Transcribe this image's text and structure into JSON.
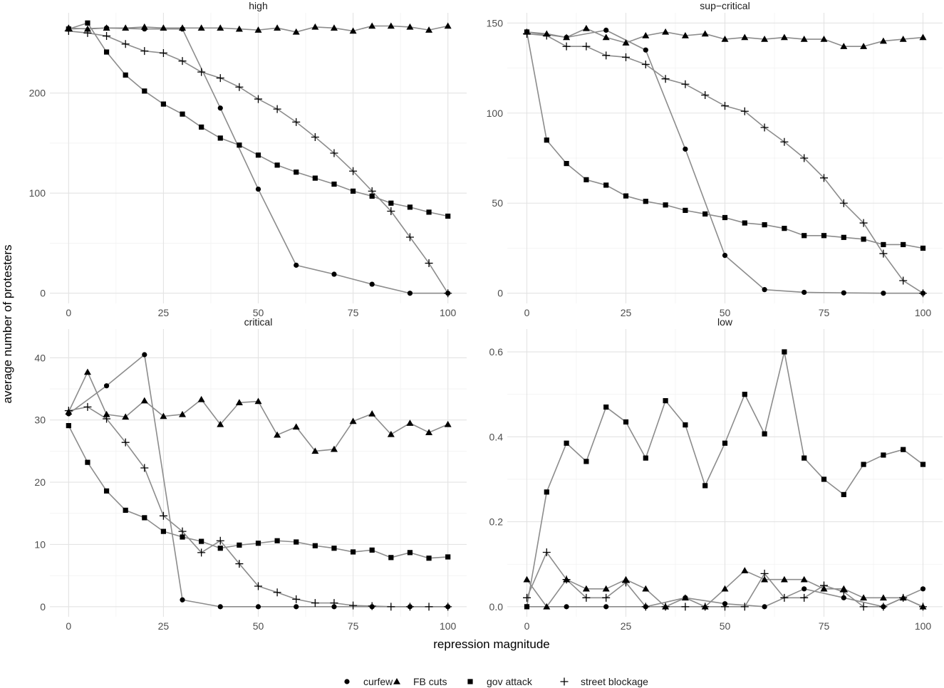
{
  "figure": {
    "xlabel": "repression magnitude",
    "ylabel": "average number of protesters",
    "colors": {
      "line": "#8c8c8c",
      "marker": "#000000",
      "grid_major": "#e3e3e3",
      "grid_minor": "#f2f2f2",
      "text": "#4d4d4d"
    },
    "legend": {
      "placement": "bottom",
      "items": [
        {
          "label": "curfew",
          "shape": "circle"
        },
        {
          "label": "FB cuts",
          "shape": "triangle"
        },
        {
          "label": "gov attack",
          "shape": "square"
        },
        {
          "label": "street blockage",
          "shape": "plus"
        }
      ]
    }
  },
  "chart_data": [
    {
      "type": "line",
      "title": "high",
      "xlim": [
        0,
        100
      ],
      "ylim": [
        0,
        270
      ],
      "x_ticks": [
        0,
        25,
        50,
        75,
        100
      ],
      "y_ticks": [
        0,
        100,
        200
      ],
      "series": [
        {
          "name": "curfew",
          "shape": "circle",
          "x": [
            0,
            10,
            20,
            30,
            40,
            50,
            60,
            70,
            80,
            90,
            100
          ],
          "y": [
            264,
            265,
            264,
            264,
            185,
            104,
            28,
            19,
            9,
            0,
            0
          ]
        },
        {
          "name": "FB cuts",
          "shape": "triangle",
          "x": [
            0,
            5,
            10,
            15,
            20,
            25,
            30,
            35,
            40,
            45,
            50,
            55,
            60,
            65,
            70,
            75,
            80,
            85,
            90,
            95,
            100
          ],
          "y": [
            265,
            264,
            265,
            265,
            266,
            265,
            265,
            265,
            265,
            264,
            263,
            265,
            261,
            266,
            265,
            262,
            267,
            267,
            266,
            263,
            267
          ]
        },
        {
          "name": "gov attack",
          "shape": "square",
          "x": [
            0,
            5,
            10,
            15,
            20,
            25,
            30,
            35,
            40,
            45,
            50,
            55,
            60,
            65,
            70,
            75,
            80,
            85,
            90,
            95,
            100
          ],
          "y": [
            264,
            270,
            241,
            218,
            202,
            189,
            179,
            166,
            155,
            148,
            138,
            128,
            121,
            115,
            109,
            102,
            97,
            90,
            86,
            81,
            77
          ]
        },
        {
          "name": "street blockage",
          "shape": "plus",
          "x": [
            0,
            5,
            10,
            15,
            20,
            25,
            30,
            35,
            40,
            45,
            50,
            55,
            60,
            65,
            70,
            75,
            80,
            85,
            90,
            95,
            100
          ],
          "y": [
            262,
            260,
            257,
            249,
            242,
            240,
            232,
            221,
            215,
            206,
            194,
            184,
            171,
            156,
            140,
            122,
            102,
            82,
            56,
            30,
            0
          ]
        }
      ]
    },
    {
      "type": "line",
      "title": "sup−critical",
      "xlim": [
        0,
        100
      ],
      "ylim": [
        0,
        150
      ],
      "x_ticks": [
        0,
        25,
        50,
        75,
        100
      ],
      "y_ticks": [
        0,
        50,
        100,
        150
      ],
      "series": [
        {
          "name": "curfew",
          "shape": "circle",
          "x": [
            0,
            10,
            20,
            30,
            40,
            50,
            60,
            70,
            80,
            90,
            100
          ],
          "y": [
            145,
            142,
            146,
            135,
            80,
            21,
            2,
            0.5,
            0.2,
            0,
            0
          ]
        },
        {
          "name": "FB cuts",
          "shape": "triangle",
          "x": [
            0,
            5,
            10,
            15,
            20,
            25,
            30,
            35,
            40,
            45,
            50,
            55,
            60,
            65,
            70,
            75,
            80,
            85,
            90,
            95,
            100
          ],
          "y": [
            145,
            144,
            142,
            147,
            142,
            139,
            143,
            145,
            143,
            144,
            141,
            142,
            141,
            142,
            141,
            141,
            137,
            137,
            140,
            141,
            142
          ]
        },
        {
          "name": "gov attack",
          "shape": "square",
          "x": [
            0,
            5,
            10,
            15,
            20,
            25,
            30,
            35,
            40,
            45,
            50,
            55,
            60,
            65,
            70,
            75,
            80,
            85,
            90,
            95,
            100
          ],
          "y": [
            145,
            85,
            72,
            63,
            60,
            54,
            51,
            49,
            46,
            44,
            42,
            39,
            38,
            36,
            32,
            32,
            31,
            30,
            27,
            27,
            25
          ]
        },
        {
          "name": "street blockage",
          "shape": "plus",
          "x": [
            0,
            5,
            10,
            15,
            20,
            25,
            30,
            35,
            40,
            45,
            50,
            55,
            60,
            65,
            70,
            75,
            80,
            85,
            90,
            95,
            100
          ],
          "y": [
            144,
            143,
            137,
            137,
            132,
            131,
            127,
            119,
            116,
            110,
            104,
            101,
            92,
            84,
            75,
            64,
            50,
            39,
            22,
            7,
            0
          ]
        }
      ]
    },
    {
      "type": "line",
      "title": "critical",
      "xlim": [
        0,
        100
      ],
      "ylim": [
        0,
        43
      ],
      "x_ticks": [
        0,
        25,
        50,
        75,
        100
      ],
      "y_ticks": [
        0,
        10,
        20,
        30,
        40
      ],
      "series": [
        {
          "name": "curfew",
          "shape": "circle",
          "x": [
            0,
            10,
            20,
            30,
            40,
            50,
            60,
            70,
            80,
            90,
            100
          ],
          "y": [
            31,
            35.5,
            40.5,
            1.1,
            0,
            0,
            0,
            0,
            0,
            0,
            0
          ]
        },
        {
          "name": "FB cuts",
          "shape": "triangle",
          "x": [
            0,
            5,
            10,
            15,
            20,
            25,
            30,
            35,
            40,
            45,
            50,
            55,
            60,
            65,
            70,
            75,
            80,
            85,
            90,
            95,
            100
          ],
          "y": [
            31.3,
            37.7,
            30.9,
            30.5,
            33.1,
            30.6,
            30.9,
            33.3,
            29.3,
            32.8,
            33.0,
            27.6,
            28.9,
            25.0,
            25.3,
            29.8,
            31.0,
            27.7,
            29.5,
            28.0,
            29.3
          ]
        },
        {
          "name": "gov attack",
          "shape": "square",
          "x": [
            0,
            5,
            10,
            15,
            20,
            25,
            30,
            35,
            40,
            45,
            50,
            55,
            60,
            65,
            70,
            75,
            80,
            85,
            90,
            95,
            100
          ],
          "y": [
            29.1,
            23.2,
            18.6,
            15.5,
            14.3,
            12.1,
            11.2,
            10.5,
            9.4,
            9.9,
            10.2,
            10.6,
            10.4,
            9.8,
            9.4,
            8.8,
            9.1,
            7.9,
            8.7,
            7.8,
            8.0
          ]
        },
        {
          "name": "street blockage",
          "shape": "plus",
          "x": [
            0,
            5,
            10,
            15,
            20,
            25,
            30,
            35,
            40,
            45,
            50,
            55,
            60,
            65,
            70,
            75,
            80,
            85,
            90,
            95,
            100
          ],
          "y": [
            31.5,
            32.1,
            30.2,
            26.4,
            22.3,
            14.6,
            12.1,
            8.7,
            10.6,
            6.9,
            3.3,
            2.3,
            1.2,
            0.6,
            0.6,
            0.2,
            0.1,
            0,
            0,
            0,
            0
          ]
        }
      ]
    },
    {
      "type": "line",
      "title": "low",
      "xlim": [
        0,
        100
      ],
      "ylim": [
        0,
        0.63
      ],
      "x_ticks": [
        0,
        25,
        50,
        75,
        100
      ],
      "y_ticks": [
        0.0,
        0.2,
        0.4,
        0.6
      ],
      "y_tick_labels": [
        "0.0",
        "0.2",
        "0.4",
        "0.6"
      ],
      "series": [
        {
          "name": "curfew",
          "shape": "circle",
          "x": [
            0,
            10,
            20,
            30,
            40,
            50,
            60,
            70,
            80,
            90,
            100
          ],
          "y": [
            0,
            0,
            0,
            0,
            0.021,
            0.007,
            0,
            0.042,
            0.021,
            0,
            0.042
          ]
        },
        {
          "name": "FB cuts",
          "shape": "triangle",
          "x": [
            0,
            5,
            10,
            15,
            20,
            25,
            30,
            35,
            40,
            45,
            50,
            55,
            60,
            65,
            70,
            75,
            80,
            85,
            90,
            95,
            100
          ],
          "y": [
            0.064,
            0,
            0.064,
            0.042,
            0.042,
            0.064,
            0.042,
            0,
            0.021,
            0,
            0.042,
            0.085,
            0.064,
            0.064,
            0.064,
            0.042,
            0.042,
            0.021,
            0.021,
            0.021,
            0
          ]
        },
        {
          "name": "gov attack",
          "shape": "square",
          "x": [
            0,
            5,
            10,
            15,
            20,
            25,
            30,
            35,
            40,
            45,
            50,
            55,
            60,
            65,
            70,
            75,
            80,
            85,
            90,
            95,
            100
          ],
          "y": [
            0,
            0.27,
            0.385,
            0.342,
            0.47,
            0.435,
            0.35,
            0.485,
            0.428,
            0.285,
            0.385,
            0.5,
            0.407,
            0.6,
            0.35,
            0.3,
            0.264,
            0.335,
            0.357,
            0.37,
            0.335
          ]
        },
        {
          "name": "street blockage",
          "shape": "plus",
          "x": [
            0,
            5,
            10,
            15,
            20,
            25,
            30,
            35,
            40,
            45,
            50,
            55,
            60,
            65,
            70,
            75,
            80,
            85,
            90,
            95,
            100
          ],
          "y": [
            0.021,
            0.128,
            0.064,
            0.021,
            0.021,
            0.057,
            0,
            0,
            0,
            0,
            0,
            0,
            0.078,
            0.021,
            0.021,
            0.05,
            0.035,
            0,
            0,
            0.021,
            0
          ]
        }
      ]
    }
  ]
}
